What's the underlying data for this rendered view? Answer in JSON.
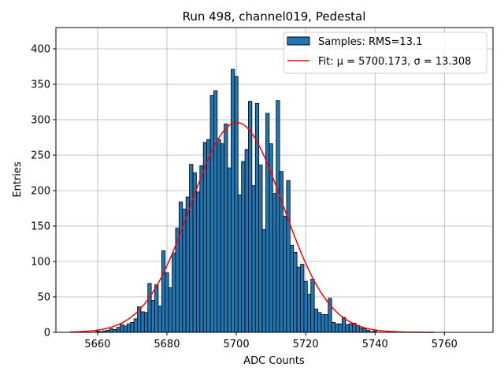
{
  "chart_data": {
    "type": "bar",
    "title": "Run 498, channel019, Pedestal",
    "xlabel": "ADC Counts",
    "ylabel": "Entries",
    "xlim": [
      5648,
      5774
    ],
    "ylim": [
      0,
      430
    ],
    "xticks": [
      5660,
      5680,
      5700,
      5720,
      5740,
      5760
    ],
    "yticks": [
      0,
      50,
      100,
      150,
      200,
      250,
      300,
      350,
      400
    ],
    "grid": true,
    "legend_position": "top-right",
    "series": [
      {
        "name": "Samples: RMS=13.1",
        "kind": "histogram",
        "color": "#1f77b4",
        "edgecolor": "#000000",
        "bin_width": 1,
        "x": [
          5660,
          5661,
          5662,
          5663,
          5664,
          5665,
          5666,
          5667,
          5668,
          5669,
          5670,
          5671,
          5672,
          5673,
          5674,
          5675,
          5676,
          5677,
          5678,
          5679,
          5680,
          5681,
          5682,
          5683,
          5684,
          5685,
          5686,
          5687,
          5688,
          5689,
          5690,
          5691,
          5692,
          5693,
          5694,
          5695,
          5696,
          5697,
          5698,
          5699,
          5700,
          5701,
          5702,
          5703,
          5704,
          5705,
          5706,
          5707,
          5708,
          5709,
          5710,
          5711,
          5712,
          5713,
          5714,
          5715,
          5716,
          5717,
          5718,
          5719,
          5720,
          5721,
          5722,
          5723,
          5724,
          5725,
          5726,
          5727,
          5728,
          5729,
          5730,
          5731,
          5732,
          5733,
          5734,
          5735,
          5736,
          5737,
          5738,
          5739,
          5740
        ],
        "values": [
          2,
          1,
          2,
          3,
          5,
          4,
          7,
          11,
          9,
          12,
          14,
          19,
          36,
          29,
          28,
          69,
          45,
          67,
          37,
          115,
          84,
          63,
          112,
          147,
          184,
          174,
          191,
          237,
          225,
          198,
          235,
          268,
          272,
          334,
          341,
          272,
          266,
          294,
          232,
          371,
          361,
          194,
          241,
          258,
          326,
          207,
          323,
          236,
          145,
          309,
          266,
          196,
          327,
          227,
          164,
          214,
          123,
          113,
          92,
          96,
          72,
          54,
          75,
          33,
          28,
          25,
          25,
          48,
          14,
          12,
          12,
          21,
          11,
          12,
          13,
          10,
          6,
          5,
          3,
          1,
          2
        ]
      },
      {
        "name": "Fit: μ = 5700.173, σ = 13.308",
        "kind": "line",
        "color": "#ff0000",
        "mu": 5700.173,
        "sigma": 13.308,
        "amplitude": 296,
        "x_range": [
          5652,
          5757
        ]
      }
    ]
  }
}
